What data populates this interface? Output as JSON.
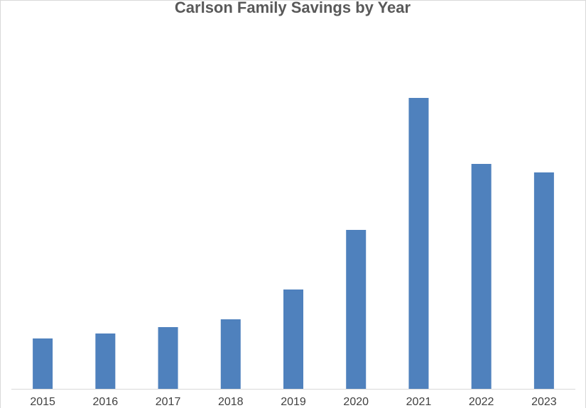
{
  "chart_data": {
    "type": "bar",
    "title": "Carlson Family Savings by Year",
    "categories": [
      "2015",
      "2016",
      "2017",
      "2018",
      "2019",
      "2020",
      "2021",
      "2022",
      "2023"
    ],
    "values": [
      71,
      78,
      87,
      98,
      140,
      224,
      410,
      317,
      305
    ],
    "color": "#4f81bd",
    "ylim": [
      0,
      500
    ]
  }
}
